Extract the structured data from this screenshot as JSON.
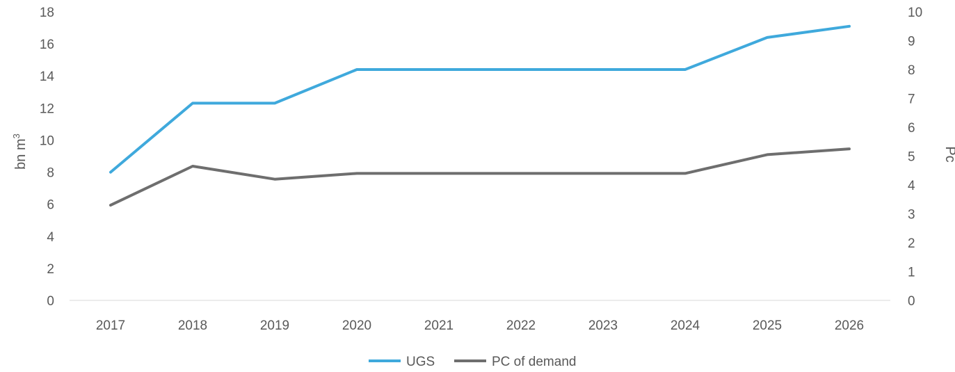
{
  "chart_data": {
    "type": "line",
    "categories": [
      "2017",
      "2018",
      "2019",
      "2020",
      "2021",
      "2022",
      "2023",
      "2024",
      "2025",
      "2026"
    ],
    "series": [
      {
        "name": "UGS",
        "axis": "left",
        "color": "#3FA9DC",
        "values": [
          8.0,
          12.3,
          12.3,
          14.4,
          14.4,
          14.4,
          14.4,
          14.4,
          16.4,
          17.1
        ]
      },
      {
        "name": "PC of demand",
        "axis": "right",
        "color": "#6E6E6E",
        "values": [
          3.3,
          4.65,
          4.2,
          4.4,
          4.4,
          4.4,
          4.4,
          4.4,
          5.05,
          5.25
        ]
      }
    ],
    "ylabel": "bn m",
    "ylabel_sup": "3",
    "y2label": "Pc",
    "ylim": [
      0,
      18
    ],
    "y2lim": [
      0,
      10
    ],
    "yticks": [
      "0",
      "2",
      "4",
      "6",
      "8",
      "10",
      "12",
      "14",
      "16",
      "18"
    ],
    "y2ticks": [
      "0",
      "1",
      "2",
      "3",
      "4",
      "5",
      "6",
      "7",
      "8",
      "9",
      "10"
    ],
    "grid": false,
    "legend_position": "bottom"
  }
}
